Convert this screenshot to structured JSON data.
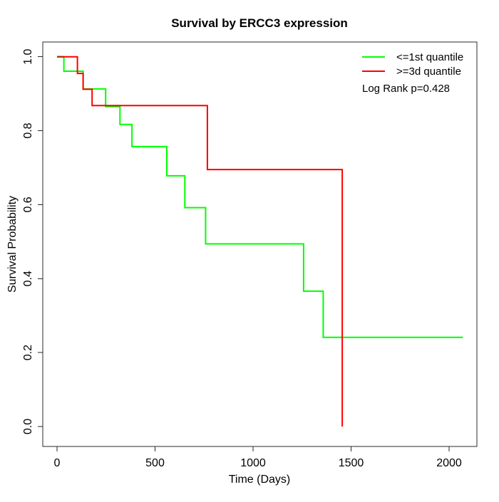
{
  "title": "Survival by ERCC3 expression",
  "chart_data": {
    "type": "line",
    "chart_style": "kaplan-meier-step",
    "title": "Survival by ERCC3 expression",
    "xlabel": "Time (Days)",
    "ylabel": "Survival Probability",
    "xlim": [
      0,
      2070
    ],
    "ylim": [
      0.0,
      1.0
    ],
    "x_ticks": [
      "0",
      "500",
      "1000",
      "1500",
      "2000"
    ],
    "y_ticks": [
      "0.0",
      "0.2",
      "0.4",
      "0.6",
      "0.8",
      "1.0"
    ],
    "grid": false,
    "legend_position": "top-right-inside",
    "annotation": "Log Rank p=0.428",
    "overlap_segment_color": "#A03000",
    "series": [
      {
        "name": "<=1st quantile",
        "color": "#00FF00",
        "steps": [
          [
            0,
            1.0
          ],
          [
            35,
            0.961
          ],
          [
            133,
            0.913
          ],
          [
            248,
            0.865
          ],
          [
            321,
            0.817
          ],
          [
            382,
            0.757
          ],
          [
            560,
            0.678
          ],
          [
            652,
            0.592
          ],
          [
            758,
            0.494
          ],
          [
            1258,
            0.366
          ],
          [
            1358,
            0.241
          ]
        ],
        "end_time": 2070
      },
      {
        "name": ">=3d quantile",
        "color": "#FF0000",
        "steps": [
          [
            0,
            1.0
          ],
          [
            104,
            0.955
          ],
          [
            133,
            0.912
          ],
          [
            179,
            0.868
          ],
          [
            767,
            0.695
          ],
          [
            1455,
            0.0
          ]
        ],
        "end_time": 1455
      }
    ]
  }
}
